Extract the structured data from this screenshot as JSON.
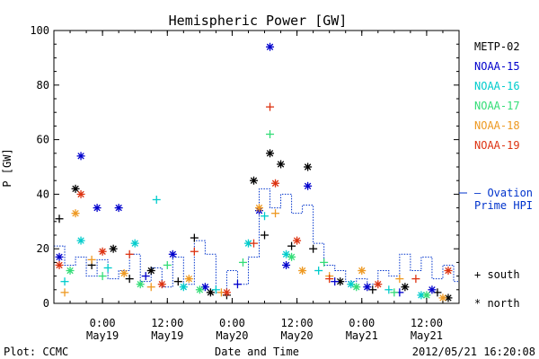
{
  "chart_data": {
    "type": "scatter",
    "title": "Hemispheric Power [GW]",
    "ylabel": "P [GW]",
    "xlabel": "Date and Time",
    "ylim": [
      0,
      100
    ],
    "yticks": [
      0,
      20,
      40,
      60,
      80,
      100
    ],
    "xlim": [
      "2012-05-18 15:00",
      "2012-05-21 18:00"
    ],
    "xticks": [
      {
        "at": "2012-05-19 00:00",
        "time": "0:00",
        "date": "May19"
      },
      {
        "at": "2012-05-19 12:00",
        "time": "12:00",
        "date": "May19"
      },
      {
        "at": "2012-05-20 00:00",
        "time": "0:00",
        "date": "May20"
      },
      {
        "at": "2012-05-20 12:00",
        "time": "12:00",
        "date": "May20"
      },
      {
        "at": "2012-05-21 00:00",
        "time": "0:00",
        "date": "May21"
      },
      {
        "at": "2012-05-21 12:00",
        "time": "12:00",
        "date": "May21"
      }
    ],
    "legend_placement": "right",
    "series": [
      {
        "name": "METP-02",
        "color": "#000000",
        "points": [
          {
            "t": "2012-05-18 16:00",
            "v": 31,
            "m": "south"
          },
          {
            "t": "2012-05-18 19:00",
            "v": 42,
            "m": "north"
          },
          {
            "t": "2012-05-18 22:00",
            "v": 14,
            "m": "south"
          },
          {
            "t": "2012-05-19 02:00",
            "v": 20,
            "m": "north"
          },
          {
            "t": "2012-05-19 05:00",
            "v": 9,
            "m": "south"
          },
          {
            "t": "2012-05-19 09:00",
            "v": 12,
            "m": "north"
          },
          {
            "t": "2012-05-19 14:00",
            "v": 8,
            "m": "south"
          },
          {
            "t": "2012-05-19 17:00",
            "v": 24,
            "m": "south"
          },
          {
            "t": "2012-05-19 20:00",
            "v": 4,
            "m": "north"
          },
          {
            "t": "2012-05-19 23:00",
            "v": 3,
            "m": "south"
          },
          {
            "t": "2012-05-20 04:00",
            "v": 45,
            "m": "north"
          },
          {
            "t": "2012-05-20 06:00",
            "v": 25,
            "m": "south"
          },
          {
            "t": "2012-05-20 07:00",
            "v": 55,
            "m": "north"
          },
          {
            "t": "2012-05-20 09:00",
            "v": 51,
            "m": "north"
          },
          {
            "t": "2012-05-20 11:00",
            "v": 21,
            "m": "south"
          },
          {
            "t": "2012-05-20 14:00",
            "v": 50,
            "m": "north"
          },
          {
            "t": "2012-05-20 15:00",
            "v": 20,
            "m": "south"
          },
          {
            "t": "2012-05-20 20:00",
            "v": 8,
            "m": "north"
          },
          {
            "t": "2012-05-21 02:00",
            "v": 5,
            "m": "south"
          },
          {
            "t": "2012-05-21 08:00",
            "v": 6,
            "m": "north"
          },
          {
            "t": "2012-05-21 14:00",
            "v": 4,
            "m": "south"
          },
          {
            "t": "2012-05-21 16:00",
            "v": 2,
            "m": "north"
          }
        ]
      },
      {
        "name": "NOAA-15",
        "color": "#0000cc",
        "points": [
          {
            "t": "2012-05-18 16:00",
            "v": 17,
            "m": "north"
          },
          {
            "t": "2012-05-18 20:00",
            "v": 54,
            "m": "north"
          },
          {
            "t": "2012-05-18 23:00",
            "v": 35,
            "m": "north"
          },
          {
            "t": "2012-05-19 03:00",
            "v": 35,
            "m": "north"
          },
          {
            "t": "2012-05-19 08:00",
            "v": 10,
            "m": "south"
          },
          {
            "t": "2012-05-19 13:00",
            "v": 18,
            "m": "north"
          },
          {
            "t": "2012-05-19 19:00",
            "v": 6,
            "m": "north"
          },
          {
            "t": "2012-05-20 01:00",
            "v": 7,
            "m": "south"
          },
          {
            "t": "2012-05-20 05:00",
            "v": 34,
            "m": "north"
          },
          {
            "t": "2012-05-20 07:00",
            "v": 94,
            "m": "north"
          },
          {
            "t": "2012-05-20 10:00",
            "v": 14,
            "m": "north"
          },
          {
            "t": "2012-05-20 14:00",
            "v": 43,
            "m": "north"
          },
          {
            "t": "2012-05-20 19:00",
            "v": 8,
            "m": "south"
          },
          {
            "t": "2012-05-21 01:00",
            "v": 6,
            "m": "north"
          },
          {
            "t": "2012-05-21 07:00",
            "v": 4,
            "m": "south"
          },
          {
            "t": "2012-05-21 13:00",
            "v": 5,
            "m": "north"
          }
        ]
      },
      {
        "name": "NOAA-16",
        "color": "#00cccc",
        "points": [
          {
            "t": "2012-05-18 17:00",
            "v": 8,
            "m": "south"
          },
          {
            "t": "2012-05-18 20:00",
            "v": 23,
            "m": "north"
          },
          {
            "t": "2012-05-19 01:00",
            "v": 13,
            "m": "south"
          },
          {
            "t": "2012-05-19 06:00",
            "v": 22,
            "m": "north"
          },
          {
            "t": "2012-05-19 10:00",
            "v": 38,
            "m": "south"
          },
          {
            "t": "2012-05-19 15:00",
            "v": 6,
            "m": "north"
          },
          {
            "t": "2012-05-19 21:00",
            "v": 5,
            "m": "south"
          },
          {
            "t": "2012-05-20 03:00",
            "v": 22,
            "m": "north"
          },
          {
            "t": "2012-05-20 06:00",
            "v": 32,
            "m": "south"
          },
          {
            "t": "2012-05-20 10:00",
            "v": 18,
            "m": "north"
          },
          {
            "t": "2012-05-20 16:00",
            "v": 12,
            "m": "south"
          },
          {
            "t": "2012-05-20 22:00",
            "v": 7,
            "m": "north"
          },
          {
            "t": "2012-05-21 05:00",
            "v": 5,
            "m": "south"
          },
          {
            "t": "2012-05-21 11:00",
            "v": 3,
            "m": "north"
          }
        ]
      },
      {
        "name": "NOAA-17",
        "color": "#33dd77",
        "points": [
          {
            "t": "2012-05-18 18:00",
            "v": 12,
            "m": "north"
          },
          {
            "t": "2012-05-19 00:00",
            "v": 10,
            "m": "south"
          },
          {
            "t": "2012-05-19 07:00",
            "v": 7,
            "m": "north"
          },
          {
            "t": "2012-05-19 12:00",
            "v": 14,
            "m": "south"
          },
          {
            "t": "2012-05-19 18:00",
            "v": 5,
            "m": "north"
          },
          {
            "t": "2012-05-20 02:00",
            "v": 15,
            "m": "south"
          },
          {
            "t": "2012-05-20 07:00",
            "v": 62,
            "m": "south"
          },
          {
            "t": "2012-05-20 11:00",
            "v": 17,
            "m": "north"
          },
          {
            "t": "2012-05-20 17:00",
            "v": 15,
            "m": "south"
          },
          {
            "t": "2012-05-20 23:00",
            "v": 6,
            "m": "north"
          },
          {
            "t": "2012-05-21 06:00",
            "v": 4,
            "m": "south"
          },
          {
            "t": "2012-05-21 12:00",
            "v": 3,
            "m": "north"
          }
        ]
      },
      {
        "name": "NOAA-18",
        "color": "#ee9922",
        "points": [
          {
            "t": "2012-05-18 17:00",
            "v": 4,
            "m": "south"
          },
          {
            "t": "2012-05-18 19:00",
            "v": 33,
            "m": "north"
          },
          {
            "t": "2012-05-18 22:00",
            "v": 16,
            "m": "south"
          },
          {
            "t": "2012-05-19 04:00",
            "v": 11,
            "m": "north"
          },
          {
            "t": "2012-05-19 09:00",
            "v": 6,
            "m": "south"
          },
          {
            "t": "2012-05-19 16:00",
            "v": 9,
            "m": "north"
          },
          {
            "t": "2012-05-19 22:00",
            "v": 4,
            "m": "south"
          },
          {
            "t": "2012-05-20 05:00",
            "v": 35,
            "m": "north"
          },
          {
            "t": "2012-05-20 08:00",
            "v": 33,
            "m": "south"
          },
          {
            "t": "2012-05-20 13:00",
            "v": 12,
            "m": "north"
          },
          {
            "t": "2012-05-20 18:00",
            "v": 10,
            "m": "south"
          },
          {
            "t": "2012-05-21 00:00",
            "v": 12,
            "m": "north"
          },
          {
            "t": "2012-05-21 07:00",
            "v": 9,
            "m": "south"
          },
          {
            "t": "2012-05-21 15:00",
            "v": 2,
            "m": "north"
          }
        ]
      },
      {
        "name": "NOAA-19",
        "color": "#dd3311",
        "points": [
          {
            "t": "2012-05-18 16:00",
            "v": 14,
            "m": "north"
          },
          {
            "t": "2012-05-18 20:00",
            "v": 40,
            "m": "north"
          },
          {
            "t": "2012-05-19 00:00",
            "v": 19,
            "m": "north"
          },
          {
            "t": "2012-05-19 05:00",
            "v": 18,
            "m": "south"
          },
          {
            "t": "2012-05-19 11:00",
            "v": 7,
            "m": "north"
          },
          {
            "t": "2012-05-19 17:00",
            "v": 19,
            "m": "south"
          },
          {
            "t": "2012-05-19 23:00",
            "v": 4,
            "m": "north"
          },
          {
            "t": "2012-05-20 04:00",
            "v": 22,
            "m": "south"
          },
          {
            "t": "2012-05-20 07:00",
            "v": 72,
            "m": "south"
          },
          {
            "t": "2012-05-20 08:00",
            "v": 44,
            "m": "north"
          },
          {
            "t": "2012-05-20 12:00",
            "v": 23,
            "m": "north"
          },
          {
            "t": "2012-05-20 18:00",
            "v": 9,
            "m": "south"
          },
          {
            "t": "2012-05-21 03:00",
            "v": 7,
            "m": "north"
          },
          {
            "t": "2012-05-21 10:00",
            "v": 9,
            "m": "south"
          },
          {
            "t": "2012-05-21 16:00",
            "v": 12,
            "m": "north"
          }
        ]
      },
      {
        "name": "— Ovation Prime HPI",
        "name_lines": [
          "— Ovation",
          "Prime HPI"
        ],
        "color": "#0033cc",
        "kind": "step",
        "points": [
          {
            "t": "2012-05-18 15:00",
            "v": 21
          },
          {
            "t": "2012-05-18 17:00",
            "v": 14
          },
          {
            "t": "2012-05-18 19:00",
            "v": 17
          },
          {
            "t": "2012-05-18 21:00",
            "v": 10
          },
          {
            "t": "2012-05-18 23:00",
            "v": 16
          },
          {
            "t": "2012-05-19 01:00",
            "v": 9
          },
          {
            "t": "2012-05-19 03:00",
            "v": 12
          },
          {
            "t": "2012-05-19 05:00",
            "v": 18
          },
          {
            "t": "2012-05-19 07:00",
            "v": 8
          },
          {
            "t": "2012-05-19 09:00",
            "v": 13
          },
          {
            "t": "2012-05-19 11:00",
            "v": 6
          },
          {
            "t": "2012-05-19 13:00",
            "v": 17
          },
          {
            "t": "2012-05-19 15:00",
            "v": 7
          },
          {
            "t": "2012-05-19 17:00",
            "v": 23
          },
          {
            "t": "2012-05-19 19:00",
            "v": 18
          },
          {
            "t": "2012-05-19 21:00",
            "v": 4
          },
          {
            "t": "2012-05-19 23:00",
            "v": 12
          },
          {
            "t": "2012-05-20 01:00",
            "v": 7
          },
          {
            "t": "2012-05-20 03:00",
            "v": 17
          },
          {
            "t": "2012-05-20 05:00",
            "v": 42
          },
          {
            "t": "2012-05-20 07:00",
            "v": 35
          },
          {
            "t": "2012-05-20 09:00",
            "v": 40
          },
          {
            "t": "2012-05-20 11:00",
            "v": 33
          },
          {
            "t": "2012-05-20 13:00",
            "v": 36
          },
          {
            "t": "2012-05-20 15:00",
            "v": 22
          },
          {
            "t": "2012-05-20 17:00",
            "v": 14
          },
          {
            "t": "2012-05-20 19:00",
            "v": 12
          },
          {
            "t": "2012-05-20 21:00",
            "v": 8
          },
          {
            "t": "2012-05-20 23:00",
            "v": 9
          },
          {
            "t": "2012-05-21 01:00",
            "v": 7
          },
          {
            "t": "2012-05-21 03:00",
            "v": 12
          },
          {
            "t": "2012-05-21 05:00",
            "v": 10
          },
          {
            "t": "2012-05-21 07:00",
            "v": 18
          },
          {
            "t": "2012-05-21 09:00",
            "v": 12
          },
          {
            "t": "2012-05-21 11:00",
            "v": 17
          },
          {
            "t": "2012-05-21 13:00",
            "v": 9
          },
          {
            "t": "2012-05-21 15:00",
            "v": 14
          },
          {
            "t": "2012-05-21 17:00",
            "v": 8
          }
        ]
      }
    ],
    "marker_legend": [
      {
        "symbol": "+",
        "label": "south"
      },
      {
        "symbol": "*",
        "label": "north"
      }
    ]
  },
  "footer": {
    "plot_credit": "Plot: CCMC",
    "timestamp": "2012/05/21 16:20:08"
  }
}
